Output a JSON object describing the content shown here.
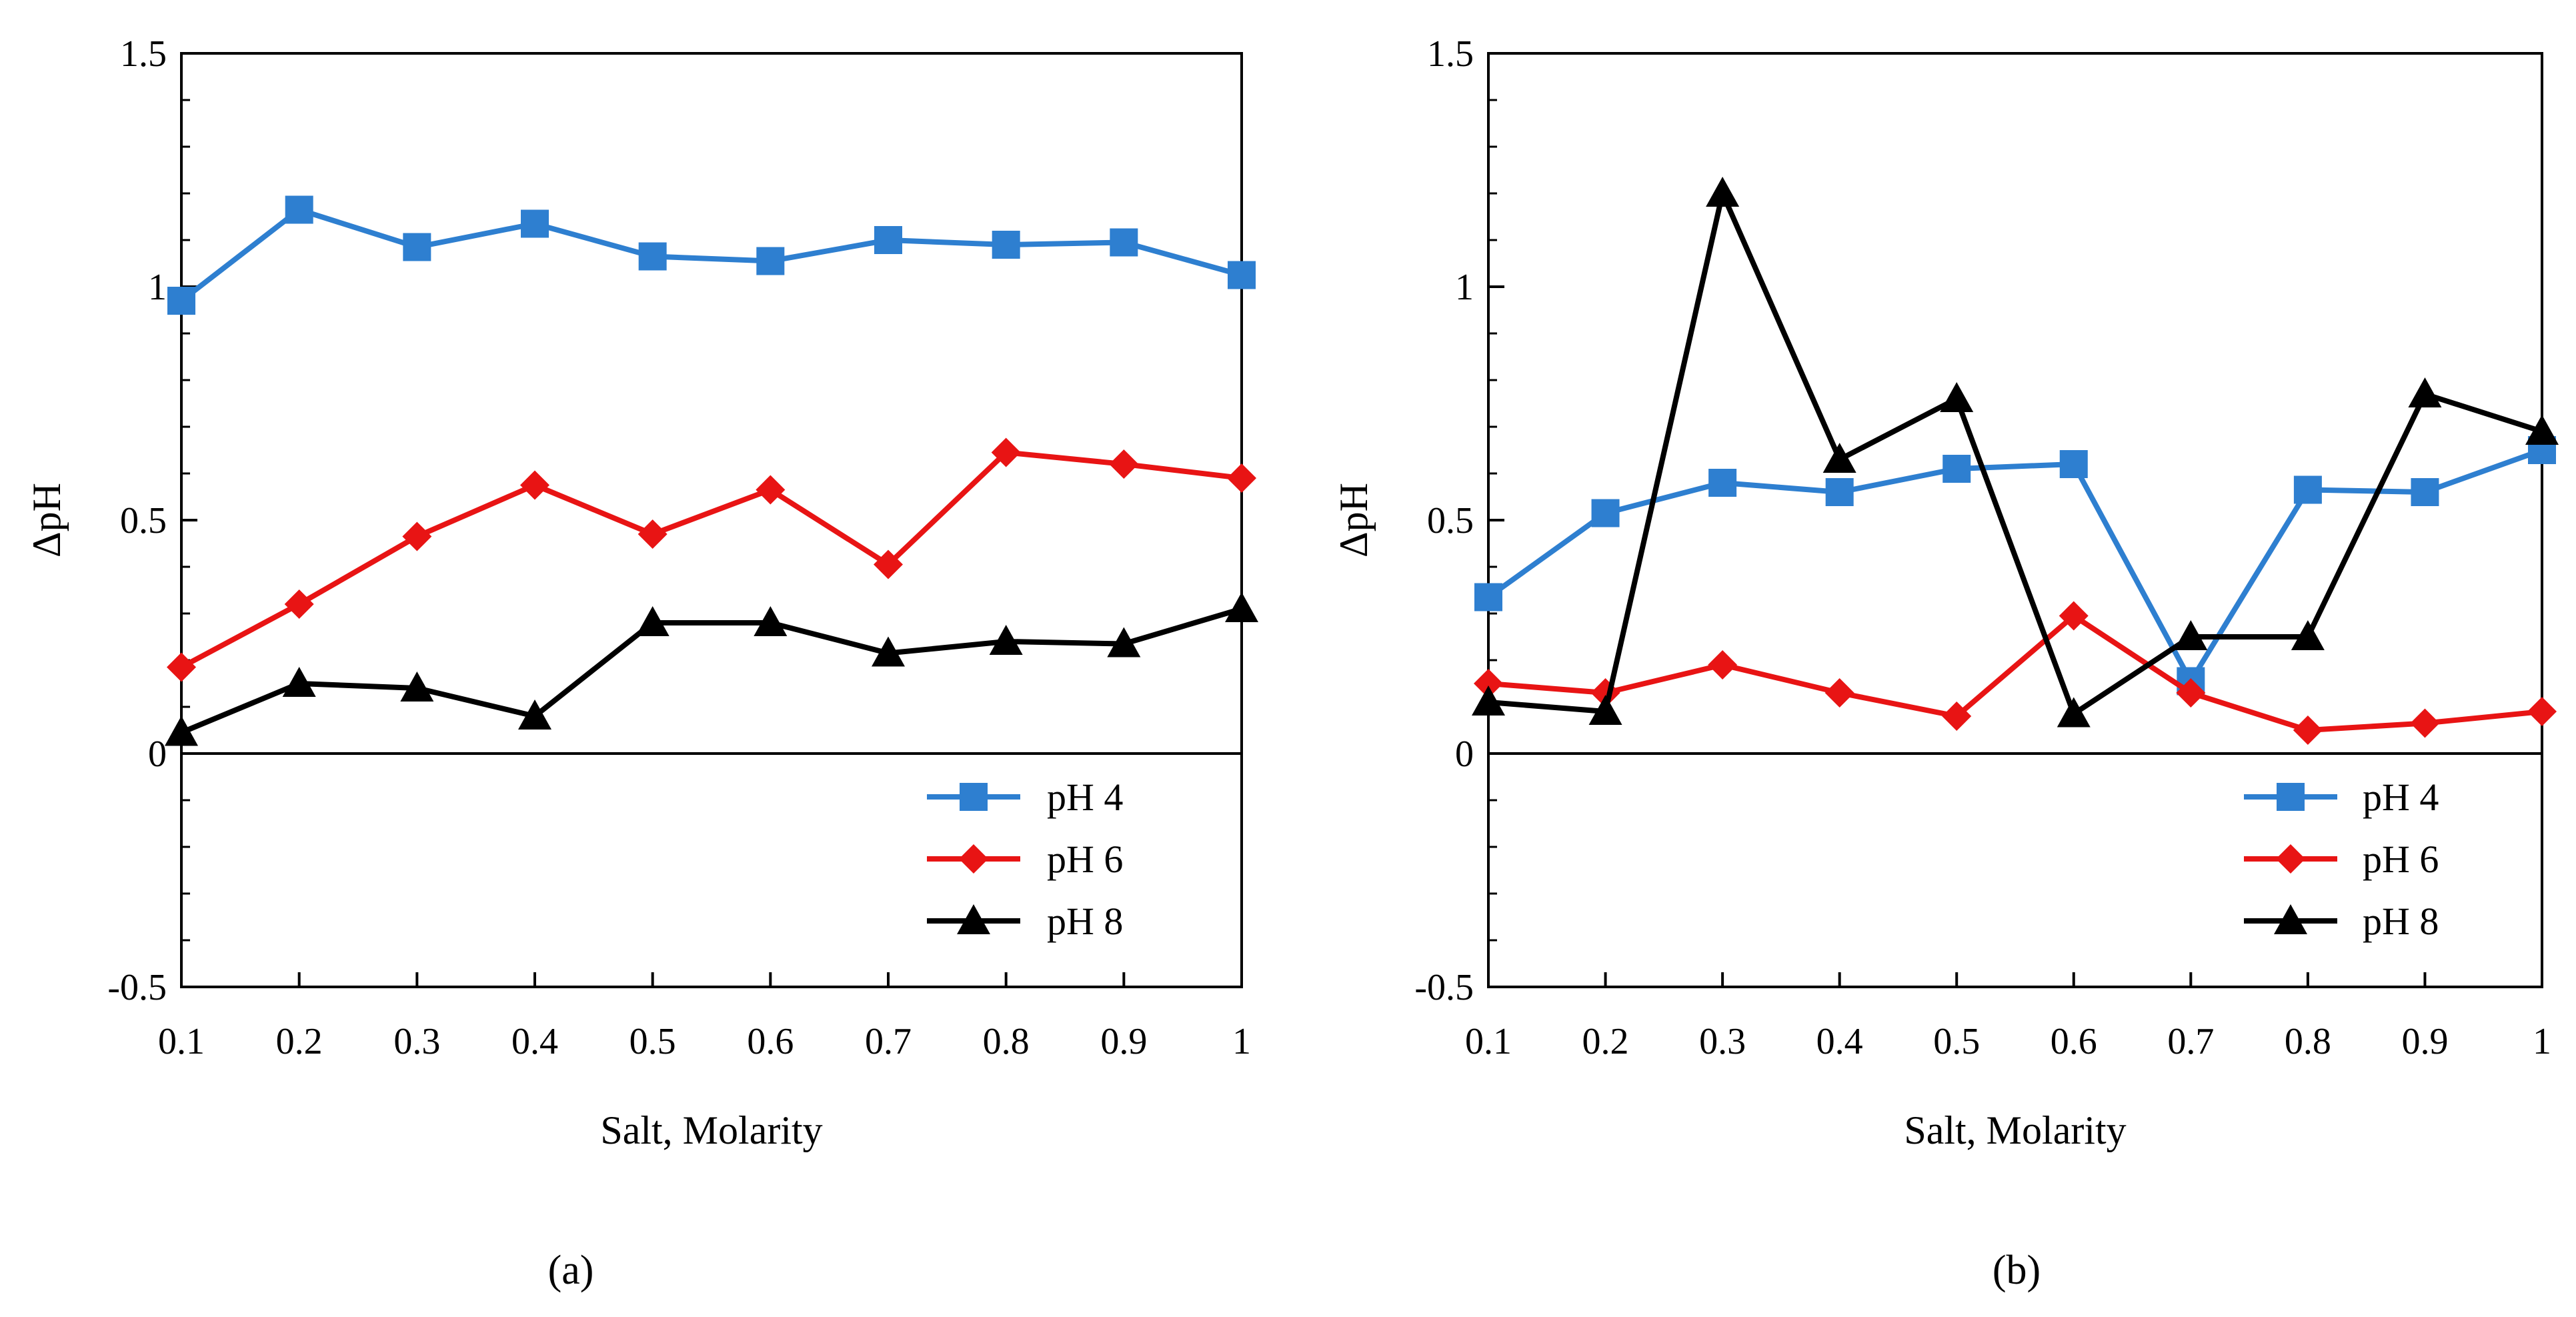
{
  "chart_data": [
    {
      "type": "line",
      "panel": "a",
      "panel_label": "(a)",
      "title": "",
      "xlabel": "Salt, Molarity",
      "ylabel": "ΔpH",
      "x": [
        0.1,
        0.2,
        0.3,
        0.4,
        0.5,
        0.6,
        0.7,
        0.8,
        0.9,
        1
      ],
      "x_tick_labels": [
        "0.1",
        "0.2",
        "0.3",
        "0.4",
        "0.5",
        "0.6",
        "0.7",
        "0.8",
        "0.9",
        "1"
      ],
      "xlim": [
        0.1,
        1
      ],
      "ylim": [
        -0.5,
        1.5
      ],
      "y_ticks": [
        -0.5,
        0,
        0.5,
        1,
        1.5
      ],
      "y_tick_labels": [
        "-0.5",
        "0",
        "0.5",
        "1",
        "1.5"
      ],
      "grid": false,
      "legend_position": "bottom-right",
      "series": [
        {
          "name": "pH 4",
          "color": "#2e7fd0",
          "marker": "square",
          "values": [
            0.97,
            1.165,
            1.085,
            1.135,
            1.065,
            1.055,
            1.1,
            1.09,
            1.095,
            1.025
          ]
        },
        {
          "name": "pH 6",
          "color": "#e81414",
          "marker": "diamond",
          "values": [
            0.185,
            0.32,
            0.465,
            0.575,
            0.47,
            0.565,
            0.405,
            0.645,
            0.62,
            0.59
          ]
        },
        {
          "name": "pH 8",
          "color": "#000000",
          "marker": "triangle",
          "values": [
            0.045,
            0.15,
            0.14,
            0.08,
            0.28,
            0.28,
            0.215,
            0.24,
            0.235,
            0.31
          ]
        }
      ]
    },
    {
      "type": "line",
      "panel": "b",
      "panel_label": "(b)",
      "title": "",
      "xlabel": "Salt, Molarity",
      "ylabel": "ΔpH",
      "x": [
        0.1,
        0.2,
        0.3,
        0.4,
        0.5,
        0.6,
        0.7,
        0.8,
        0.9,
        1
      ],
      "x_tick_labels": [
        "0.1",
        "0.2",
        "0.3",
        "0.4",
        "0.5",
        "0.6",
        "0.7",
        "0.8",
        "0.9",
        "1"
      ],
      "xlim": [
        0.1,
        1
      ],
      "ylim": [
        -0.5,
        1.5
      ],
      "y_ticks": [
        -0.5,
        0,
        0.5,
        1,
        1.5
      ],
      "y_tick_labels": [
        "-0.5",
        "0",
        "0.5",
        "1",
        "1.5"
      ],
      "grid": false,
      "legend_position": "bottom-right",
      "series": [
        {
          "name": "pH 4",
          "color": "#2e7fd0",
          "marker": "square",
          "values": [
            0.335,
            0.515,
            0.58,
            0.56,
            0.61,
            0.62,
            0.155,
            0.565,
            0.56,
            0.65
          ]
        },
        {
          "name": "pH 6",
          "color": "#e81414",
          "marker": "diamond",
          "values": [
            0.15,
            0.13,
            0.19,
            0.13,
            0.08,
            0.295,
            0.13,
            0.05,
            0.065,
            0.09
          ]
        },
        {
          "name": "pH 8",
          "color": "#000000",
          "marker": "triangle",
          "values": [
            0.11,
            0.09,
            1.2,
            0.63,
            0.76,
            0.085,
            0.25,
            0.25,
            0.77,
            0.69
          ]
        }
      ]
    }
  ]
}
